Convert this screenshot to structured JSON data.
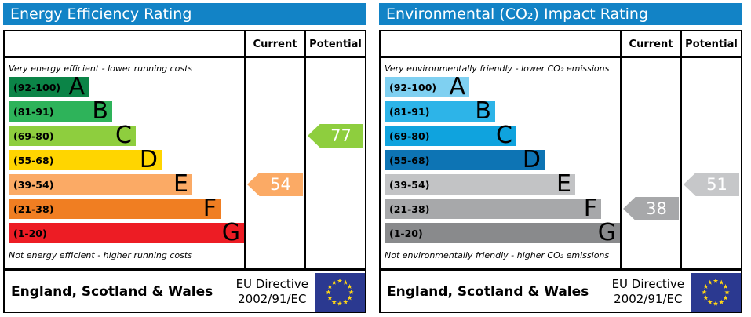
{
  "theme": {
    "header_bg": "#1283c6",
    "border_color": "#000000",
    "eu_flag": {
      "background": "#2b3990",
      "stars": "#ffd617"
    }
  },
  "panels": [
    {
      "title": "Energy Efficiency Rating",
      "columns": {
        "current": "Current",
        "potential": "Potential"
      },
      "top_note": "Very energy efficient - lower running costs",
      "bottom_note": "Not energy efficient - higher running costs",
      "bands": [
        {
          "grade": "A",
          "range": "(92-100)",
          "color": "#0b8447",
          "width_pct": 34
        },
        {
          "grade": "B",
          "range": "(81-91)",
          "color": "#2eb35a",
          "width_pct": 44
        },
        {
          "grade": "C",
          "range": "(69-80)",
          "color": "#8ece3e",
          "width_pct": 54
        },
        {
          "grade": "D",
          "range": "(55-68)",
          "color": "#ffd500",
          "width_pct": 65
        },
        {
          "grade": "E",
          "range": "(39-54)",
          "color": "#fbaa65",
          "width_pct": 78
        },
        {
          "grade": "F",
          "range": "(21-38)",
          "color": "#f07e22",
          "width_pct": 90
        },
        {
          "grade": "G",
          "range": "(1-20)",
          "color": "#ed1c24",
          "width_pct": 100
        }
      ],
      "current": {
        "value": "54",
        "band": "E",
        "row": 4,
        "color": "#fbaa65"
      },
      "potential": {
        "value": "77",
        "band": "C",
        "row": 2,
        "color": "#8ece3e"
      },
      "footer": {
        "region": "England, Scotland & Wales",
        "directive_line1": "EU Directive",
        "directive_line2": "2002/91/EC"
      }
    },
    {
      "title": "Environmental (CO₂) Impact Rating",
      "columns": {
        "current": "Current",
        "potential": "Potential"
      },
      "top_note": "Very environmentally friendly - lower CO₂ emissions",
      "bottom_note": "Not environmentally friendly - higher CO₂ emissions",
      "bands": [
        {
          "grade": "A",
          "range": "(92-100)",
          "color": "#7fd0f1",
          "width_pct": 36
        },
        {
          "grade": "B",
          "range": "(81-91)",
          "color": "#2db4e8",
          "width_pct": 47
        },
        {
          "grade": "C",
          "range": "(69-80)",
          "color": "#0fa3de",
          "width_pct": 56
        },
        {
          "grade": "D",
          "range": "(55-68)",
          "color": "#0d74b4",
          "width_pct": 68
        },
        {
          "grade": "E",
          "range": "(39-54)",
          "color": "#c2c3c5",
          "width_pct": 81
        },
        {
          "grade": "F",
          "range": "(21-38)",
          "color": "#a7a8aa",
          "width_pct": 92
        },
        {
          "grade": "G",
          "range": "(1-20)",
          "color": "#898a8c",
          "width_pct": 100
        }
      ],
      "current": {
        "value": "38",
        "band": "F",
        "row": 5,
        "color": "#a7a8aa"
      },
      "potential": {
        "value": "51",
        "band": "E",
        "row": 4,
        "color": "#c6c7c9"
      },
      "footer": {
        "region": "England, Scotland & Wales",
        "directive_line1": "EU Directive",
        "directive_line2": "2002/91/EC"
      }
    }
  ],
  "chart_data": [
    {
      "type": "bar",
      "title": "Energy Efficiency Rating",
      "categories": [
        "A (92-100)",
        "B (81-91)",
        "C (69-80)",
        "D (55-68)",
        "E (39-54)",
        "F (21-38)",
        "G (1-20)"
      ],
      "band_bar_widths_pct": [
        34,
        44,
        54,
        65,
        78,
        90,
        100
      ],
      "values": {
        "current": 54,
        "current_band": "E",
        "potential": 77,
        "potential_band": "C"
      },
      "annotations": [
        "Very energy efficient - lower running costs",
        "Not energy efficient - higher running costs"
      ],
      "legend_position": "top-right-columns",
      "series": [
        {
          "name": "Current",
          "values": [
            54
          ]
        },
        {
          "name": "Potential",
          "values": [
            77
          ]
        }
      ]
    },
    {
      "type": "bar",
      "title": "Environmental (CO₂) Impact Rating",
      "categories": [
        "A (92-100)",
        "B (81-91)",
        "C (69-80)",
        "D (55-68)",
        "E (39-54)",
        "F (21-38)",
        "G (1-20)"
      ],
      "band_bar_widths_pct": [
        36,
        47,
        56,
        68,
        81,
        92,
        100
      ],
      "values": {
        "current": 38,
        "current_band": "F",
        "potential": 51,
        "potential_band": "E"
      },
      "annotations": [
        "Very environmentally friendly - lower CO₂ emissions",
        "Not environmentally friendly - higher CO₂ emissions"
      ],
      "legend_position": "top-right-columns",
      "series": [
        {
          "name": "Current",
          "values": [
            38
          ]
        },
        {
          "name": "Potential",
          "values": [
            51
          ]
        }
      ]
    }
  ]
}
